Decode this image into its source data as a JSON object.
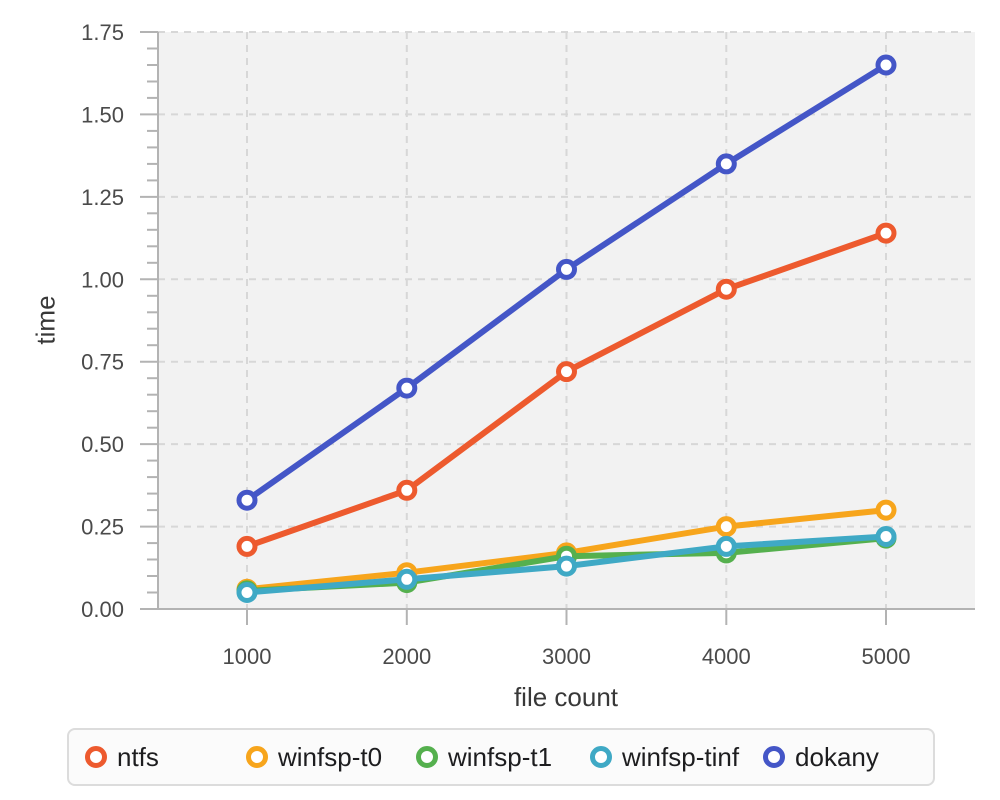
{
  "chart_data": {
    "type": "line",
    "title": "",
    "xlabel": "file count",
    "ylabel": "time",
    "x": [
      1000,
      2000,
      3000,
      4000,
      5000
    ],
    "x_tick_labels": [
      "1000",
      "2000",
      "3000",
      "4000",
      "5000"
    ],
    "y_tick_labels": [
      "0.00",
      "0.25",
      "0.50",
      "0.75",
      "1.00",
      "1.25",
      "1.50",
      "1.75"
    ],
    "ylim": [
      0,
      1.75
    ],
    "y_major_step": 0.25,
    "y_minor_step": 0.05,
    "grid": true,
    "grid_style": "dashed",
    "marker": "open-circle",
    "legend_position": "bottom",
    "series": [
      {
        "name": "ntfs",
        "color": "#ed5a2e",
        "values": [
          0.19,
          0.36,
          0.72,
          0.97,
          1.14
        ]
      },
      {
        "name": "winfsp-t0",
        "color": "#f7a51c",
        "values": [
          0.06,
          0.11,
          0.17,
          0.25,
          0.3
        ]
      },
      {
        "name": "winfsp-t1",
        "color": "#55b04e",
        "values": [
          0.055,
          0.08,
          0.16,
          0.17,
          0.215
        ]
      },
      {
        "name": "winfsp-tinf",
        "color": "#3fa9c5",
        "values": [
          0.05,
          0.09,
          0.13,
          0.19,
          0.22
        ]
      },
      {
        "name": "dokany",
        "color": "#4456c7",
        "values": [
          0.33,
          0.67,
          1.03,
          1.35,
          1.65
        ]
      }
    ],
    "colors": {
      "plot_background": "#f2f2f2",
      "gridline": "#d7d7d7",
      "axis": "#b3b3b3",
      "tick_label": "#4a4a4a",
      "axis_title": "#383838",
      "legend_border": "#dcdcdc",
      "legend_background": "#fbfbfb",
      "legend_text": "#1d1d1f"
    }
  }
}
